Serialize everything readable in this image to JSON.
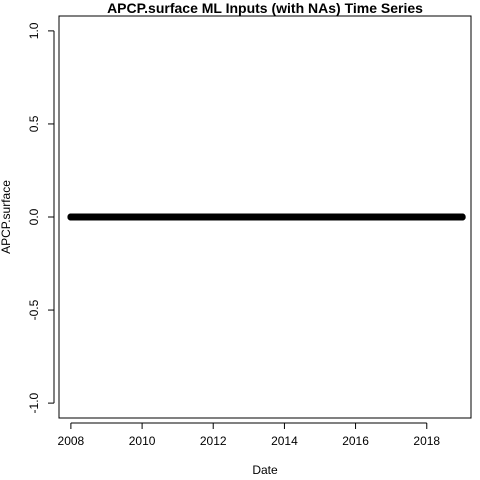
{
  "chart_data": {
    "type": "scatter",
    "title": "APCP.surface ML Inputs (with NAs) Time Series",
    "xlabel": "Date",
    "ylabel": "APCP.surface",
    "xlim": [
      "2007-09-01",
      "2019-03-31"
    ],
    "ylim": [
      -1.08,
      1.08
    ],
    "x_ticks": [
      "2008",
      "2010",
      "2012",
      "2014",
      "2016",
      "2018"
    ],
    "y_ticks": [
      "-1.0",
      "-0.5",
      "0.0",
      "0.5",
      "1.0"
    ],
    "grid": false,
    "legend": "none",
    "series": [
      {
        "x_start": "2008-01-01",
        "x_end": "2018-12-31",
        "frequency": "daily",
        "y": 0.0,
        "marker": "open-circle",
        "color": "#000000"
      }
    ]
  }
}
